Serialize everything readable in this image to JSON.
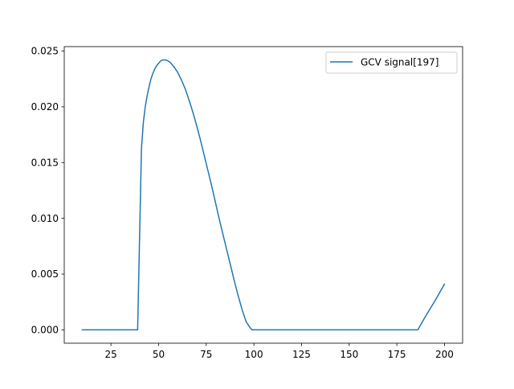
{
  "chart_data": {
    "type": "line",
    "title": "",
    "xlabel": "",
    "ylabel": "",
    "xlim": [
      0.5,
      209.5
    ],
    "ylim": [
      -0.0012,
      0.0254
    ],
    "xticks": [
      25,
      50,
      75,
      100,
      125,
      150,
      175,
      200
    ],
    "xtick_labels": [
      "25",
      "50",
      "75",
      "100",
      "125",
      "150",
      "175",
      "200"
    ],
    "yticks": [
      0.0,
      0.005,
      0.01,
      0.015,
      0.02,
      0.025
    ],
    "ytick_labels": [
      "0.000",
      "0.005",
      "0.010",
      "0.015",
      "0.020",
      "0.025"
    ],
    "grid": false,
    "legend": {
      "position": "upper-right"
    },
    "series": [
      {
        "name": "GCV signal[197]",
        "color": "#1f77b4",
        "x": [
          10,
          20,
          30,
          39,
          40,
          41,
          42,
          43,
          44,
          45,
          46,
          47,
          48,
          49,
          50,
          51,
          52,
          53,
          54,
          55,
          56,
          57,
          58,
          60,
          62,
          64,
          66,
          68,
          70,
          72,
          74,
          76,
          78,
          80,
          82,
          84,
          86,
          88,
          90,
          92,
          94,
          96,
          98,
          99,
          100,
          110,
          125,
          150,
          175,
          186,
          190,
          195,
          200
        ],
        "y": [
          0.0,
          0.0,
          0.0,
          0.0,
          0.0081,
          0.0162,
          0.0186,
          0.02,
          0.021,
          0.0218,
          0.0225,
          0.023,
          0.0234,
          0.0237,
          0.0239,
          0.0241,
          0.0242,
          0.0242,
          0.0242,
          0.0241,
          0.024,
          0.0238,
          0.0236,
          0.0231,
          0.0224,
          0.0216,
          0.0206,
          0.0195,
          0.0183,
          0.017,
          0.0156,
          0.0142,
          0.0128,
          0.0113,
          0.0098,
          0.0084,
          0.007,
          0.0056,
          0.0042,
          0.0029,
          0.0017,
          0.0007,
          0.0002,
          0.0,
          0.0,
          0.0,
          0.0,
          0.0,
          0.0,
          0.0,
          0.0012,
          0.0026,
          0.0041
        ]
      }
    ]
  }
}
